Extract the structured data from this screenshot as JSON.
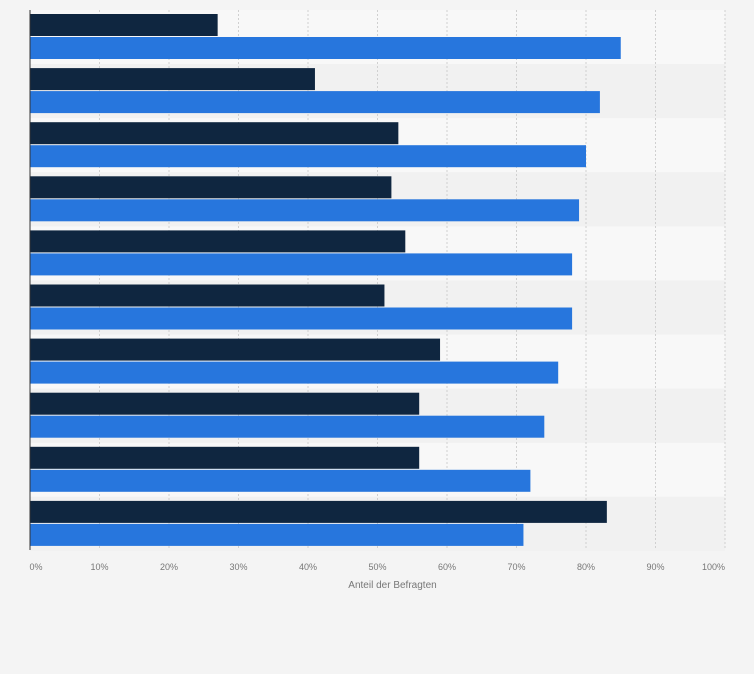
{
  "chart_data": {
    "type": "bar",
    "orientation": "horizontal",
    "title": "",
    "xlabel": "Anteil der Befragten",
    "ylabel": "",
    "xlim": [
      0,
      100
    ],
    "tick_values": [
      0,
      10,
      20,
      30,
      40,
      50,
      60,
      70,
      80,
      90,
      100
    ],
    "tick_labels": [
      "0%",
      "10%",
      "20%",
      "30%",
      "40%",
      "50%",
      "60%",
      "70%",
      "80%",
      "90%",
      "100%"
    ],
    "grid": true,
    "legend": "none",
    "categories": [
      "",
      "",
      "",
      "",
      "",
      "",
      "",
      "",
      "",
      ""
    ],
    "series": [
      {
        "name": "",
        "color": "#0f2640",
        "values": [
          27,
          41,
          53,
          52,
          54,
          51,
          59,
          56,
          56,
          83
        ]
      },
      {
        "name": "",
        "color": "#2776dd",
        "values": [
          85,
          82,
          80,
          79,
          78,
          78,
          76,
          74,
          72,
          71
        ]
      }
    ],
    "colors": {
      "band_a": "#f8f8f8",
      "band_b": "#f1f1f1",
      "grid": "#d0d0d0",
      "axis": "#333333",
      "tick_text": "#777777"
    }
  }
}
